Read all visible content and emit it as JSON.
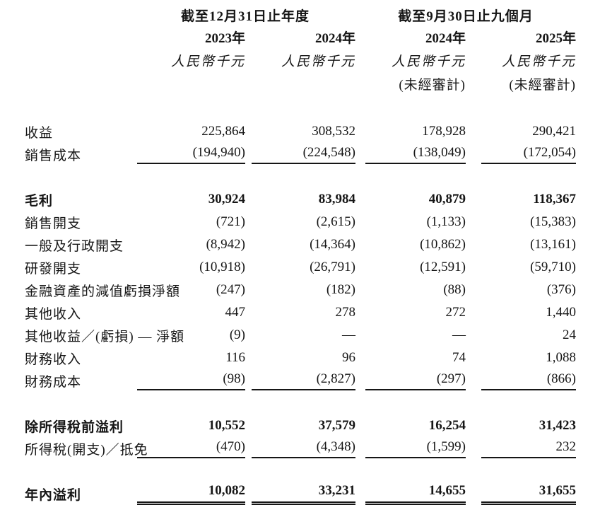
{
  "table": {
    "col_groups": [
      {
        "label": "截至12月31日止年度",
        "span": 2
      },
      {
        "label": "截至9月30日止九個月",
        "span": 2
      }
    ],
    "years": [
      "2023年",
      "2024年",
      "2024年",
      "2025年"
    ],
    "currency_label": "人民幣千元",
    "unaudited_label": "(未經審計)",
    "rows": [
      {
        "label": "收益",
        "values": [
          "225,864",
          "308,532",
          "178,928",
          "290,421"
        ]
      },
      {
        "label": "銷售成本",
        "values": [
          "(194,940)",
          "(224,548)",
          "(138,049)",
          "(172,054)"
        ],
        "underline": "single"
      },
      {
        "type": "spacer"
      },
      {
        "label": "毛利",
        "values": [
          "30,924",
          "83,984",
          "40,879",
          "118,367"
        ],
        "bold": true
      },
      {
        "label": "銷售開支",
        "values": [
          "(721)",
          "(2,615)",
          "(1,133)",
          "(15,383)"
        ]
      },
      {
        "label": "一般及行政開支",
        "values": [
          "(8,942)",
          "(14,364)",
          "(10,862)",
          "(13,161)"
        ]
      },
      {
        "label": "研發開支",
        "values": [
          "(10,918)",
          "(26,791)",
          "(12,591)",
          "(59,710)"
        ]
      },
      {
        "label": "金融資產的減值虧損淨額",
        "values": [
          "(247)",
          "(182)",
          "(88)",
          "(376)"
        ]
      },
      {
        "label": "其他收入",
        "values": [
          "447",
          "278",
          "272",
          "1,440"
        ]
      },
      {
        "label": "其他收益／(虧損) — 淨額",
        "values": [
          "(9)",
          "—",
          "—",
          "24"
        ]
      },
      {
        "label": "財務收入",
        "values": [
          "116",
          "96",
          "74",
          "1,088"
        ]
      },
      {
        "label": "財務成本",
        "values": [
          "(98)",
          "(2,827)",
          "(297)",
          "(866)"
        ],
        "underline": "single"
      },
      {
        "type": "spacer"
      },
      {
        "label": "除所得稅前溢利",
        "values": [
          "10,552",
          "37,579",
          "16,254",
          "31,423"
        ],
        "bold": true
      },
      {
        "label": "所得稅(開支)／抵免",
        "values": [
          "(470)",
          "(4,348)",
          "(1,599)",
          "232"
        ],
        "underline": "single"
      },
      {
        "type": "spacer"
      },
      {
        "label": "年內溢利",
        "values": [
          "10,082",
          "33,231",
          "14,655",
          "31,655"
        ],
        "bold": true,
        "underline": "double"
      }
    ]
  }
}
